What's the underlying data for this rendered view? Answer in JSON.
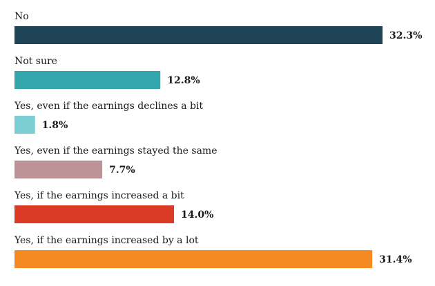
{
  "chart_data": {
    "type": "bar",
    "orientation": "horizontal",
    "categories": [
      "No",
      "Not sure",
      "Yes, even if the earnings declines a bit",
      "Yes, even if the earnings stayed the same",
      "Yes, if the earnings increased a bit",
      "Yes, if the earnings increased by a lot"
    ],
    "values": [
      32.3,
      12.8,
      1.8,
      7.7,
      14.0,
      31.4
    ],
    "value_labels": [
      "32.3%",
      "12.8%",
      "1.8%",
      "7.7%",
      "14.0%",
      "31.4%"
    ],
    "colors": [
      "#1f4455",
      "#33a6ac",
      "#7ccdd4",
      "#be9398",
      "#db3a26",
      "#f58a22"
    ],
    "title": "",
    "xlabel": "",
    "ylabel": "",
    "xlim": [
      0,
      32.3
    ],
    "grid": false,
    "legend": "none"
  }
}
